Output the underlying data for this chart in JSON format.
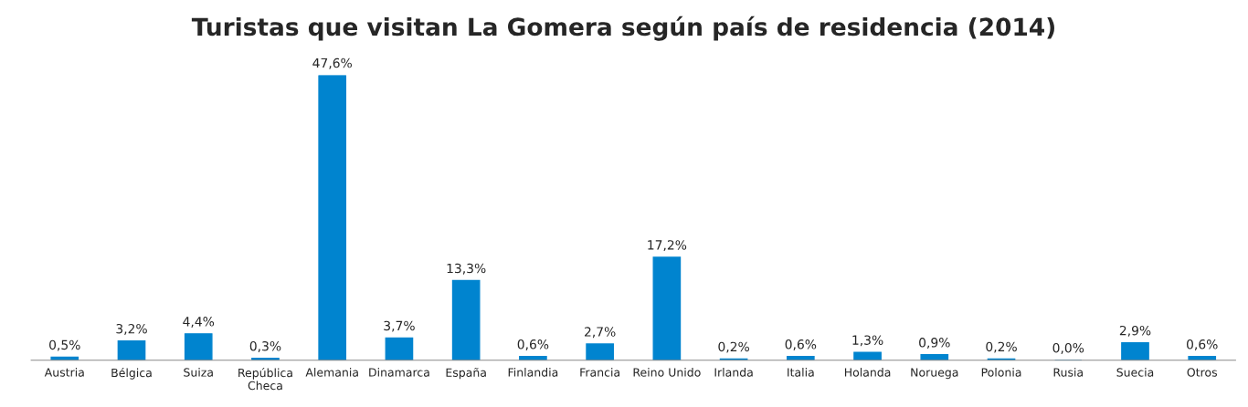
{
  "chart_data": {
    "type": "bar",
    "title": "Turistas que visitan La Gomera según país de residencia (2014)",
    "categories": [
      "Austria",
      "Bélgica",
      "Suiza",
      "República\nCheca",
      "Alemania",
      "Dinamarca",
      "España",
      "Finlandia",
      "Francia",
      "Reino Unido",
      "Irlanda",
      "Italia",
      "Holanda",
      "Noruega",
      "Polonia",
      "Rusia",
      "Suecia",
      "Otros"
    ],
    "values": [
      0.5,
      3.2,
      4.4,
      0.3,
      47.6,
      3.7,
      13.3,
      0.6,
      2.7,
      17.2,
      0.2,
      0.6,
      1.3,
      0.9,
      0.2,
      0.0,
      2.9,
      0.6
    ],
    "value_labels": [
      "0,5%",
      "3,2%",
      "4,4%",
      "0,3%",
      "47,6%",
      "3,7%",
      "13,3%",
      "0,6%",
      "2,7%",
      "17,2%",
      "0,2%",
      "0,6%",
      "1,3%",
      "0,9%",
      "0,2%",
      "0,0%",
      "2,9%",
      "0,6%"
    ],
    "color": "#0084cf",
    "grid": false,
    "legend": false
  }
}
